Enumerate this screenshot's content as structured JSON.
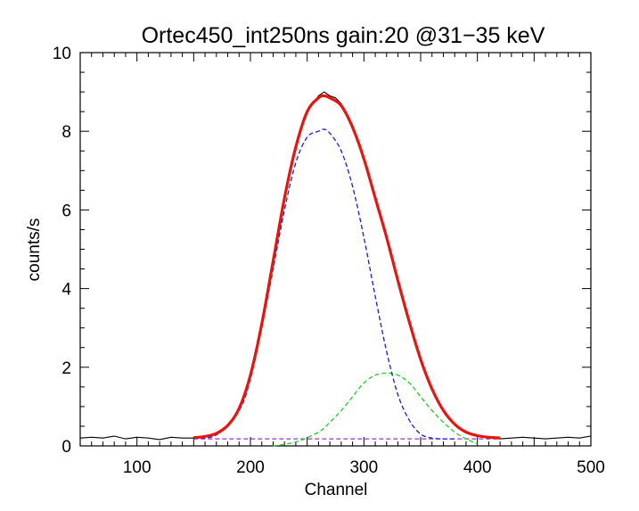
{
  "chart_data": {
    "type": "line",
    "title": "Ortec450_int250ns gain:20 @31−35 keV",
    "xlabel": "Channel",
    "ylabel": "counts/s",
    "xlim": [
      50,
      500
    ],
    "ylim": [
      0,
      10
    ],
    "x_ticks": [
      100,
      200,
      300,
      400,
      500
    ],
    "y_ticks": [
      0,
      2,
      4,
      6,
      8,
      10
    ],
    "grid": false,
    "legend": "none",
    "series": [
      {
        "color": "#000000",
        "style": "solid",
        "role": "data",
        "x": [
          50,
          60,
          70,
          80,
          90,
          100,
          110,
          120,
          130,
          140,
          150,
          160,
          170,
          180,
          190,
          200,
          210,
          220,
          230,
          240,
          250,
          260,
          265,
          270,
          275,
          280,
          290,
          300,
          310,
          320,
          330,
          340,
          350,
          360,
          370,
          380,
          390,
          400,
          410,
          420,
          430,
          440,
          450,
          460,
          470,
          480,
          490,
          500
        ],
        "values": [
          0.2,
          0.22,
          0.2,
          0.25,
          0.18,
          0.22,
          0.2,
          0.16,
          0.22,
          0.2,
          0.2,
          0.24,
          0.3,
          0.5,
          0.95,
          1.8,
          3.1,
          4.7,
          6.3,
          7.6,
          8.5,
          8.9,
          9.0,
          8.9,
          8.85,
          8.7,
          8.1,
          7.3,
          6.3,
          5.3,
          4.2,
          3.15,
          2.2,
          1.45,
          0.9,
          0.55,
          0.35,
          0.25,
          0.2,
          0.18,
          0.2,
          0.22,
          0.2,
          0.18,
          0.2,
          0.22,
          0.2,
          0.25
        ]
      },
      {
        "color": "#e8150e",
        "style": "solid",
        "role": "fit-total",
        "x": [
          150,
          160,
          170,
          180,
          190,
          200,
          210,
          220,
          230,
          240,
          250,
          260,
          265,
          270,
          280,
          290,
          300,
          310,
          320,
          330,
          340,
          350,
          360,
          370,
          380,
          390,
          400,
          410,
          420
        ],
        "values": [
          0.21,
          0.24,
          0.32,
          0.52,
          0.95,
          1.8,
          3.1,
          4.7,
          6.3,
          7.6,
          8.5,
          8.85,
          8.9,
          8.85,
          8.65,
          8.1,
          7.3,
          6.3,
          5.3,
          4.2,
          3.15,
          2.2,
          1.45,
          0.9,
          0.55,
          0.35,
          0.26,
          0.22,
          0.2
        ]
      },
      {
        "color": "#1a1ad8",
        "style": "dashed",
        "role": "gaussian-1",
        "x": [
          150,
          170,
          190,
          200,
          210,
          220,
          230,
          240,
          250,
          260,
          265,
          270,
          280,
          290,
          300,
          310,
          320,
          330,
          340,
          350,
          360,
          370,
          380
        ],
        "values": [
          0.2,
          0.28,
          0.9,
          1.7,
          3.0,
          4.5,
          6.0,
          7.2,
          7.85,
          8.0,
          8.05,
          7.95,
          7.5,
          6.6,
          5.3,
          3.8,
          2.4,
          1.3,
          0.65,
          0.3,
          0.2,
          0.18,
          0.18
        ]
      },
      {
        "color": "#22cc22",
        "style": "dashed",
        "role": "gaussian-2",
        "x": [
          220,
          240,
          260,
          270,
          280,
          290,
          300,
          310,
          320,
          330,
          340,
          350,
          360,
          370,
          380,
          390,
          400
        ],
        "values": [
          0.0,
          0.1,
          0.35,
          0.6,
          0.9,
          1.25,
          1.6,
          1.8,
          1.85,
          1.8,
          1.6,
          1.25,
          0.9,
          0.6,
          0.35,
          0.18,
          0.05
        ]
      },
      {
        "color": "#9933cc",
        "style": "dashed",
        "role": "background",
        "x": [
          150,
          420
        ],
        "values": [
          0.18,
          0.18
        ]
      }
    ]
  }
}
